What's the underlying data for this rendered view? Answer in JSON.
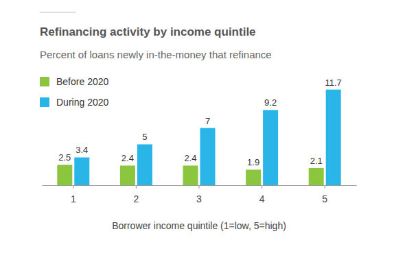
{
  "chart_data": {
    "type": "bar",
    "title": "Refinancing activity by income quintile",
    "subtitle": "Percent of loans newly in-the-money that refinance",
    "x_label": "Borrower income quintile (1=low, 5=high)",
    "categories": [
      "1",
      "2",
      "3",
      "4",
      "5"
    ],
    "series": [
      {
        "name": "Before 2020",
        "color": "#8cc63f",
        "values": [
          2.5,
          2.4,
          2.4,
          1.9,
          2.1
        ]
      },
      {
        "name": "During 2020",
        "color": "#29b5e8",
        "values": [
          3.4,
          5,
          7,
          9.2,
          11.7
        ]
      }
    ],
    "ylim": [
      0,
      12
    ],
    "tick_labels": "x",
    "grid": false,
    "legend": "top-left",
    "data_labels": true
  }
}
